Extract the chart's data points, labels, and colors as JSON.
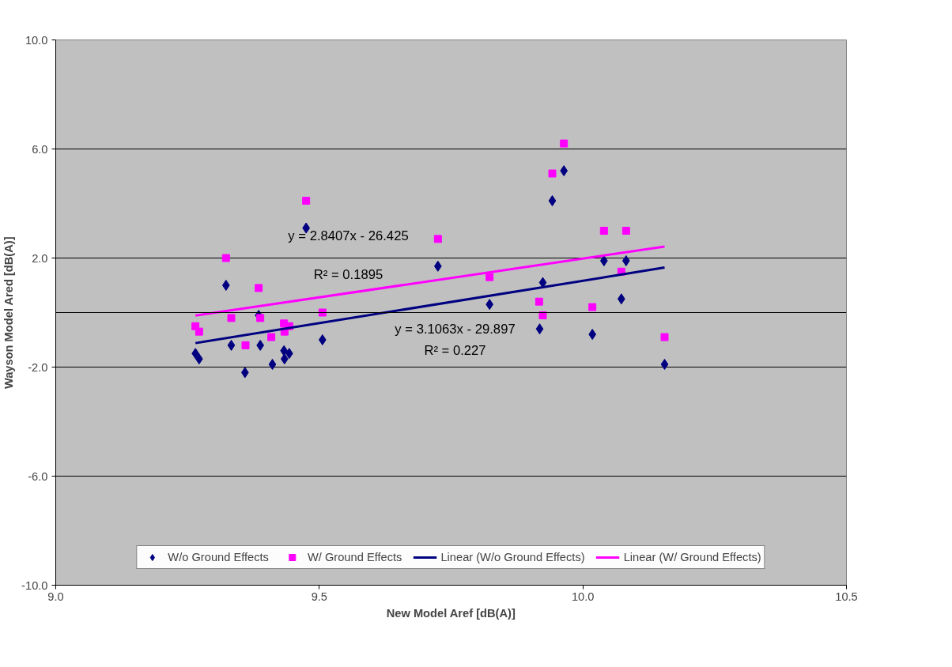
{
  "chart_data": {
    "type": "scatter",
    "xlabel": "New Model Aref [dB(A)]",
    "ylabel": "Wayson Model Ared [dB(A)]",
    "xlim": [
      9.0,
      10.5
    ],
    "ylim": [
      -10,
      10
    ],
    "xticks": [
      {
        "value": 9.0,
        "label": "9.0"
      },
      {
        "value": 9.5,
        "label": "9.5"
      },
      {
        "value": 10.0,
        "label": "10.0"
      },
      {
        "value": 10.5,
        "label": "10.5"
      }
    ],
    "yticks": [
      {
        "value": -10,
        "label": "-10.0"
      },
      {
        "value": -6,
        "label": "-6.0"
      },
      {
        "value": -2,
        "label": "-2.0"
      },
      {
        "value": 2,
        "label": "2.0"
      },
      {
        "value": 6,
        "label": "6.0"
      },
      {
        "value": 10,
        "label": "10.0"
      }
    ],
    "grid": "y",
    "legend": "bottom",
    "series": [
      {
        "name": "W/o Ground Effects",
        "color": "#000080",
        "marker": "diamond",
        "x": [
          9.265,
          9.272,
          9.323,
          9.333,
          9.359,
          9.385,
          9.388,
          9.411,
          9.433,
          9.434,
          9.443,
          9.475,
          9.506,
          9.725,
          9.823,
          9.918,
          9.924,
          9.942,
          9.964,
          10.018,
          10.04,
          10.073,
          10.082,
          10.155
        ],
        "values": [
          -1.5,
          -1.7,
          1.0,
          -1.2,
          -2.2,
          -0.1,
          -1.2,
          -1.9,
          -1.4,
          -1.7,
          -1.5,
          3.1,
          -1.0,
          1.7,
          0.3,
          -0.6,
          1.1,
          4.1,
          5.2,
          -0.8,
          1.9,
          0.5,
          1.9,
          -1.9
        ]
      },
      {
        "name": "W/ Ground Effects",
        "color": "#ff00ff",
        "marker": "square",
        "x": [
          9.265,
          9.272,
          9.323,
          9.333,
          9.36,
          9.385,
          9.388,
          9.409,
          9.433,
          9.434,
          9.443,
          9.475,
          9.506,
          9.725,
          9.823,
          9.917,
          9.924,
          9.942,
          9.964,
          10.018,
          10.04,
          10.073,
          10.082,
          10.155
        ],
        "values": [
          -0.5,
          -0.7,
          2.0,
          -0.2,
          -1.2,
          0.9,
          -0.2,
          -0.9,
          -0.4,
          -0.7,
          -0.5,
          4.1,
          0.0,
          2.7,
          1.3,
          0.4,
          -0.1,
          5.1,
          6.2,
          0.2,
          3.0,
          1.5,
          3.0,
          -0.9
        ]
      },
      {
        "name": "Linear (W/o Ground Effects)",
        "type": "line",
        "color": "#000080",
        "x": [
          9.265,
          10.155
        ],
        "values": [
          -1.12,
          1.65
        ]
      },
      {
        "name": "Linear (W/ Ground Effects)",
        "type": "line",
        "color": "#ff00ff",
        "x": [
          9.265,
          10.155
        ],
        "values": [
          -0.11,
          2.42
        ]
      }
    ],
    "annotations": [
      "y = 2.8407x - 26.425",
      "R² = 0.1895",
      "y = 3.1063x - 29.897",
      "R² = 0.227"
    ]
  }
}
